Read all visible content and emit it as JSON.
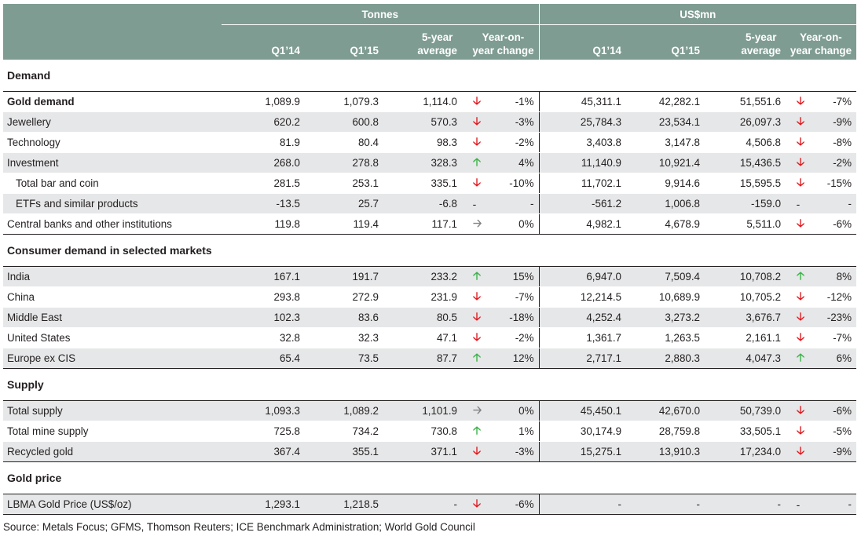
{
  "header": {
    "group_tonnes": "Tonnes",
    "group_usd": "US$mn",
    "col_q114": "Q1’14",
    "col_q115": "Q1’15",
    "col_avg_line1": "5-year",
    "col_avg_line2": "average",
    "col_chg_line1": "Year-on-",
    "col_chg_line2": "year change"
  },
  "sections": {
    "demand": "Demand",
    "consumer": "Consumer demand in selected markets",
    "supply": "Supply",
    "price": "Gold price"
  },
  "rows": {
    "gold_demand": {
      "label": "Gold demand",
      "t": [
        "1,089.9",
        "1,079.3",
        "1,114.0"
      ],
      "t_dir": "down",
      "t_chg": "-1%",
      "u": [
        "45,311.1",
        "42,282.1",
        "51,551.6"
      ],
      "u_dir": "down",
      "u_chg": "-7%"
    },
    "jewellery": {
      "label": "Jewellery",
      "t": [
        "620.2",
        "600.8",
        "570.3"
      ],
      "t_dir": "down",
      "t_chg": "-3%",
      "u": [
        "25,784.3",
        "23,534.1",
        "26,097.3"
      ],
      "u_dir": "down",
      "u_chg": "-9%"
    },
    "technology": {
      "label": "Technology",
      "t": [
        "81.9",
        "80.4",
        "98.3"
      ],
      "t_dir": "down",
      "t_chg": "-2%",
      "u": [
        "3,403.8",
        "3,147.8",
        "4,506.8"
      ],
      "u_dir": "down",
      "u_chg": "-8%"
    },
    "investment": {
      "label": "Investment",
      "t": [
        "268.0",
        "278.8",
        "328.3"
      ],
      "t_dir": "up",
      "t_chg": "4%",
      "u": [
        "11,140.9",
        "10,921.4",
        "15,436.5"
      ],
      "u_dir": "down",
      "u_chg": "-2%"
    },
    "bar_coin": {
      "label": "Total bar and coin",
      "t": [
        "281.5",
        "253.1",
        "335.1"
      ],
      "t_dir": "down",
      "t_chg": "-10%",
      "u": [
        "11,702.1",
        "9,914.6",
        "15,595.5"
      ],
      "u_dir": "down",
      "u_chg": "-15%"
    },
    "etfs": {
      "label": "ETFs and similar products",
      "t": [
        "-13.5",
        "25.7",
        "-6.8"
      ],
      "t_dash": "-",
      "t_chg": "-",
      "u": [
        "-561.2",
        "1,006.8",
        "-159.0"
      ],
      "u_dash": "-",
      "u_chg": "-"
    },
    "central_banks": {
      "label": "Central banks and other institutions",
      "t": [
        "119.8",
        "119.4",
        "117.1"
      ],
      "t_dir": "flat",
      "t_chg": "0%",
      "u": [
        "4,982.1",
        "4,678.9",
        "5,511.0"
      ],
      "u_dir": "down",
      "u_chg": "-6%"
    },
    "india": {
      "label": "India",
      "t": [
        "167.1",
        "191.7",
        "233.2"
      ],
      "t_dir": "up",
      "t_chg": "15%",
      "u": [
        "6,947.0",
        "7,509.4",
        "10,708.2"
      ],
      "u_dir": "up",
      "u_chg": "8%"
    },
    "china": {
      "label": "China",
      "t": [
        "293.8",
        "272.9",
        "231.9"
      ],
      "t_dir": "down",
      "t_chg": "-7%",
      "u": [
        "12,214.5",
        "10,689.9",
        "10,705.2"
      ],
      "u_dir": "down",
      "u_chg": "-12%"
    },
    "middle_east": {
      "label": "Middle East",
      "t": [
        "102.3",
        "83.6",
        "80.5"
      ],
      "t_dir": "down",
      "t_chg": "-18%",
      "u": [
        "4,252.4",
        "3,273.2",
        "3,676.7"
      ],
      "u_dir": "down",
      "u_chg": "-23%"
    },
    "united_states": {
      "label": "United States",
      "t": [
        "32.8",
        "32.3",
        "47.1"
      ],
      "t_dir": "down",
      "t_chg": "-2%",
      "u": [
        "1,361.7",
        "1,263.5",
        "2,161.1"
      ],
      "u_dir": "down",
      "u_chg": "-7%"
    },
    "europe": {
      "label": "Europe ex CIS",
      "t": [
        "65.4",
        "73.5",
        "87.7"
      ],
      "t_dir": "up",
      "t_chg": "12%",
      "u": [
        "2,717.1",
        "2,880.3",
        "4,047.3"
      ],
      "u_dir": "up",
      "u_chg": "6%"
    },
    "total_supply": {
      "label": "Total supply",
      "t": [
        "1,093.3",
        "1,089.2",
        "1,101.9"
      ],
      "t_dir": "flat",
      "t_chg": "0%",
      "u": [
        "45,450.1",
        "42,670.0",
        "50,739.0"
      ],
      "u_dir": "down",
      "u_chg": "-6%"
    },
    "mine_supply": {
      "label": "Total mine supply",
      "t": [
        "725.8",
        "734.2",
        "730.8"
      ],
      "t_dir": "up",
      "t_chg": "1%",
      "u": [
        "30,174.9",
        "28,759.8",
        "33,505.1"
      ],
      "u_dir": "down",
      "u_chg": "-5%"
    },
    "recycled": {
      "label": "Recycled gold",
      "t": [
        "367.4",
        "355.1",
        "371.1"
      ],
      "t_dir": "down",
      "t_chg": "-3%",
      "u": [
        "15,275.1",
        "13,910.3",
        "17,234.0"
      ],
      "u_dir": "down",
      "u_chg": "-9%"
    },
    "lbma": {
      "label": "LBMA Gold Price (US$/oz)",
      "t": [
        "1,293.1",
        "1,218.5",
        "-"
      ],
      "t_dir": "down",
      "t_chg": "-6%",
      "u": [
        "-",
        "-",
        "-"
      ],
      "u_dash": "-",
      "u_chg": "-"
    }
  },
  "arrows": {
    "up": "🡡",
    "down": "🡣",
    "flat": "🡢"
  },
  "colors": {
    "header_bg": "#7f9c92",
    "row_shade": "#e6e7e8",
    "arrow_down": "#e11b22",
    "arrow_up": "#3cb34a",
    "arrow_flat": "#808285"
  },
  "source": "Source: Metals Focus; GFMS, Thomson Reuters; ICE Benchmark Administration; World Gold Council"
}
